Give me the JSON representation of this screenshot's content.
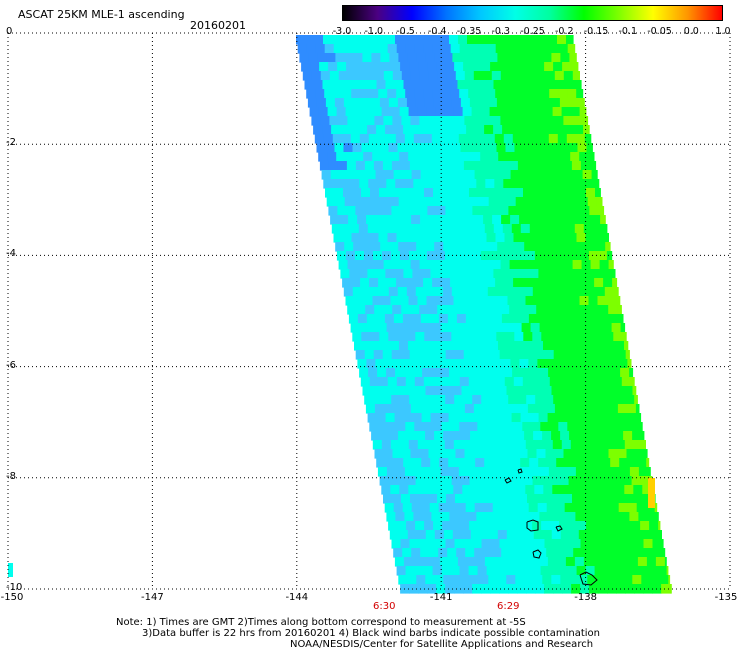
{
  "title": "ASCAT 25KM MLE-1 ascending",
  "date": "20160201",
  "colorbar": {
    "labels": [
      "-3.0",
      "-1.0",
      "-0.5",
      "-0.4",
      "-0.35",
      "-0.3",
      "-0.25",
      "-0.2",
      "-0.15",
      "-0.1",
      "-0.05",
      "0.0",
      "1.0"
    ],
    "colors": [
      "#000000",
      "#4b0082",
      "#0000ff",
      "#0073ff",
      "#00c8ff",
      "#00ffe6",
      "#00ffa0",
      "#00ff00",
      "#7dff00",
      "#ffff00",
      "#ff9600",
      "#ff0000"
    ]
  },
  "latitude_labels": [
    "0",
    "-2",
    "-4",
    "-6",
    "-8",
    "-10"
  ],
  "longitude_labels": [
    "-150",
    "-147",
    "-144",
    "-141",
    "-138",
    "-135"
  ],
  "time_labels": [
    "6:30",
    "6:29"
  ],
  "notes": {
    "line1": "Note: 1) Times are GMT 2)Times along bottom correspond to measurement at -5S",
    "line2": "3)Data buffer is 22 hrs from 20160201 4) Black wind barbs indicate possible contamination",
    "line3": "NOAA/NESDIS/Center for Satellite Applications and Research"
  },
  "map_extent": {
    "lon": [
      -150,
      -135
    ],
    "lat": [
      -10,
      0
    ]
  },
  "swath_colors": {
    "blue": "#2f8cff",
    "sky": "#3cc8ff",
    "cyan": "#00ffee",
    "aqua": "#00ffb4",
    "green": "#00ff2a",
    "lime": "#7dff00"
  }
}
